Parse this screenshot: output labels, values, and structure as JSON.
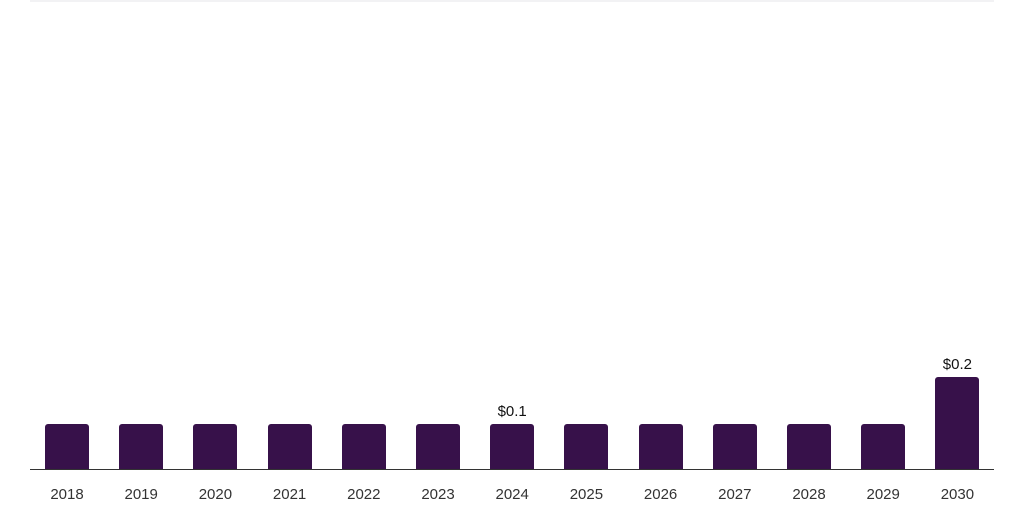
{
  "chart_data": {
    "type": "bar",
    "title": "",
    "xlabel": "",
    "ylabel": "",
    "categories": [
      "2018",
      "2019",
      "2020",
      "2021",
      "2022",
      "2023",
      "2024",
      "2025",
      "2026",
      "2027",
      "2028",
      "2029",
      "2030"
    ],
    "values": [
      0.1,
      0.1,
      0.1,
      0.1,
      0.1,
      0.1,
      0.1,
      0.1,
      0.1,
      0.1,
      0.1,
      0.1,
      0.2
    ],
    "data_labels": {
      "2024": "$0.1",
      "2030": "$0.2"
    },
    "ylim": [
      0,
      1.0
    ],
    "grid": false,
    "legend": null,
    "bar_color": "#37114a"
  }
}
